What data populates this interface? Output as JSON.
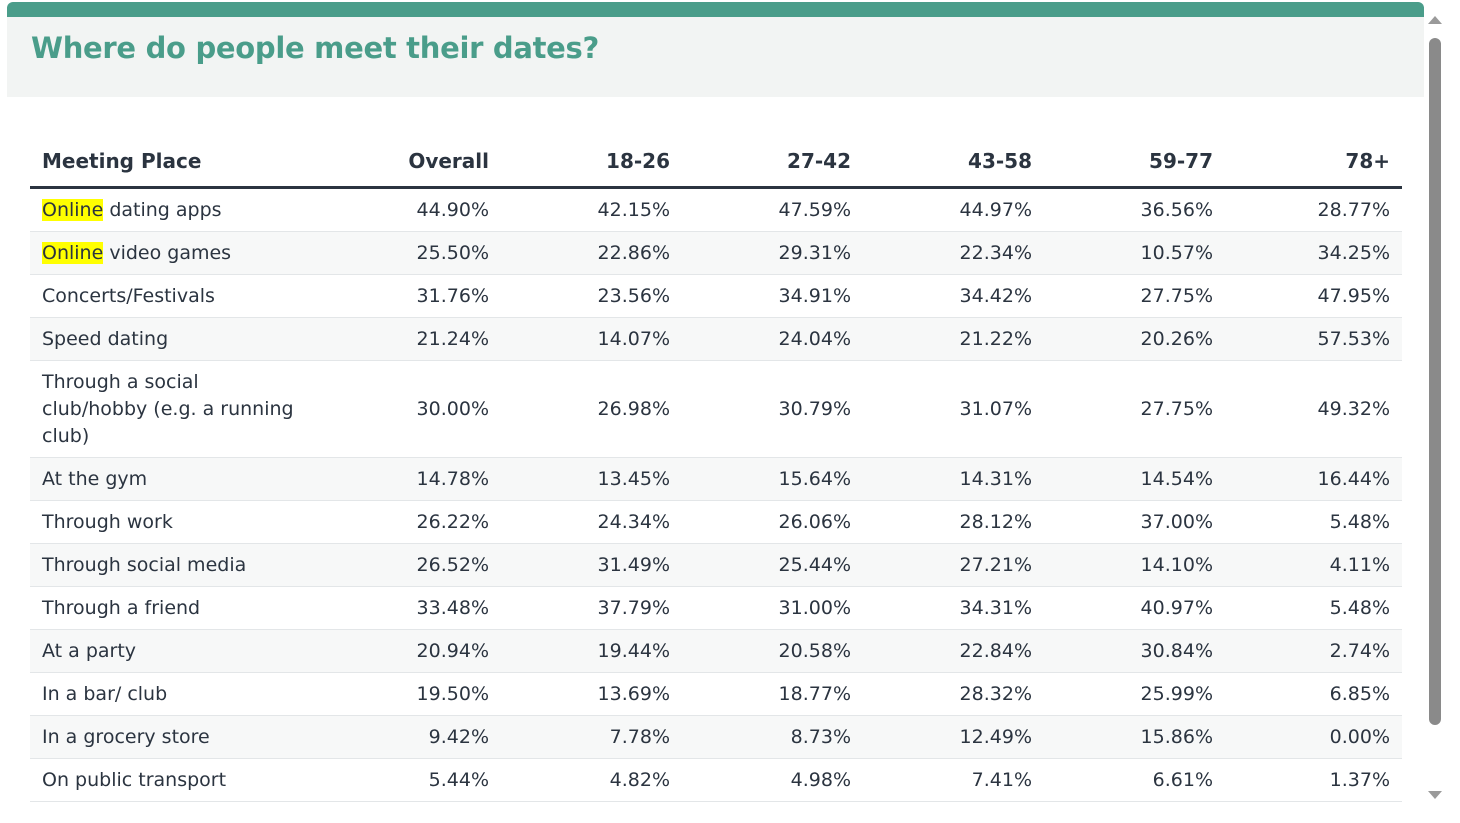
{
  "page": {
    "title": "Where do people meet their dates?",
    "accent_color": "#4a9d8a",
    "highlight_color": "#ffff00"
  },
  "table": {
    "headers": [
      "Meeting Place",
      "Overall",
      "18-26",
      "27-42",
      "43-58",
      "59-77",
      "78+"
    ],
    "rows": [
      {
        "highlight": "Online",
        "rest": " dating apps",
        "values": [
          "44.90%",
          "42.15%",
          "47.59%",
          "44.97%",
          "36.56%",
          "28.77%"
        ]
      },
      {
        "highlight": "Online",
        "rest": " video games",
        "values": [
          "25.50%",
          "22.86%",
          "29.31%",
          "22.34%",
          "10.57%",
          "34.25%"
        ]
      },
      {
        "place": "Concerts/Festivals",
        "values": [
          "31.76%",
          "23.56%",
          "34.91%",
          "34.42%",
          "27.75%",
          "47.95%"
        ]
      },
      {
        "place": "Speed dating",
        "values": [
          "21.24%",
          "14.07%",
          "24.04%",
          "21.22%",
          "20.26%",
          "57.53%"
        ]
      },
      {
        "place": "Through a social club/hobby (e.g. a running club)",
        "values": [
          "30.00%",
          "26.98%",
          "30.79%",
          "31.07%",
          "27.75%",
          "49.32%"
        ]
      },
      {
        "place": "At the gym",
        "values": [
          "14.78%",
          "13.45%",
          "15.64%",
          "14.31%",
          "14.54%",
          "16.44%"
        ]
      },
      {
        "place": "Through work",
        "values": [
          "26.22%",
          "24.34%",
          "26.06%",
          "28.12%",
          "37.00%",
          "5.48%"
        ]
      },
      {
        "place": "Through social media",
        "values": [
          "26.52%",
          "31.49%",
          "25.44%",
          "27.21%",
          "14.10%",
          "4.11%"
        ]
      },
      {
        "place": "Through a friend",
        "values": [
          "33.48%",
          "37.79%",
          "31.00%",
          "34.31%",
          "40.97%",
          "5.48%"
        ]
      },
      {
        "place": "At a party",
        "values": [
          "20.94%",
          "19.44%",
          "20.58%",
          "22.84%",
          "30.84%",
          "2.74%"
        ]
      },
      {
        "place": "In a bar/ club",
        "values": [
          "19.50%",
          "13.69%",
          "18.77%",
          "28.32%",
          "25.99%",
          "6.85%"
        ]
      },
      {
        "place": "In a grocery store",
        "values": [
          "9.42%",
          "7.78%",
          "8.73%",
          "12.49%",
          "15.86%",
          "0.00%"
        ]
      },
      {
        "place": "On public transport",
        "values": [
          "5.44%",
          "4.82%",
          "4.98%",
          "7.41%",
          "6.61%",
          "1.37%"
        ]
      }
    ]
  },
  "scrollbar": {
    "up_icon": "scroll-up-arrow-icon",
    "down_icon": "scroll-down-arrow-icon"
  }
}
